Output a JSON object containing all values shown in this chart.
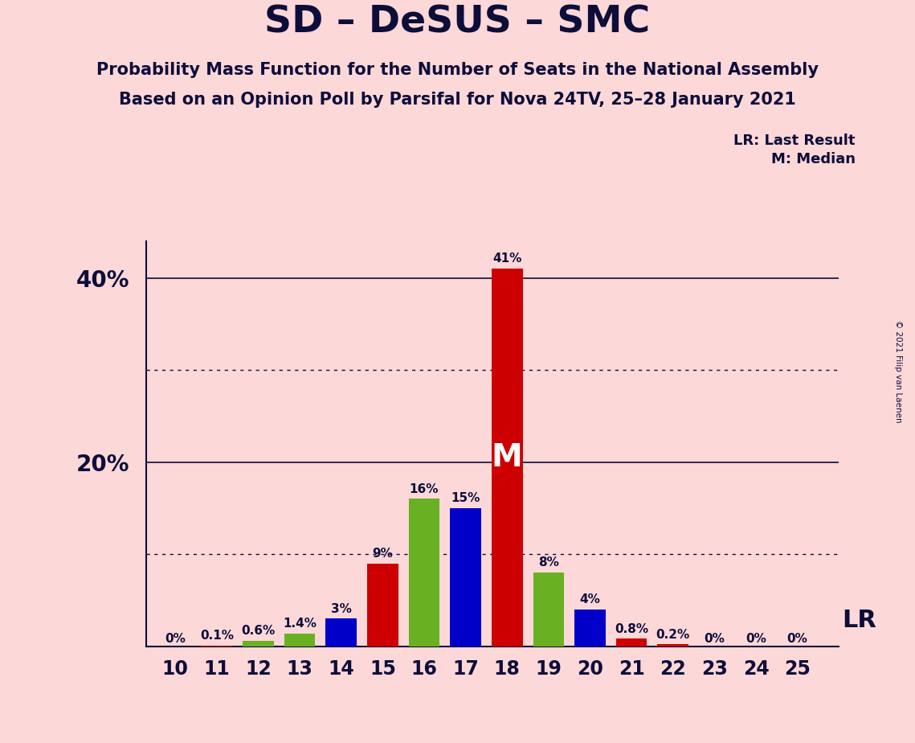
{
  "title": "SD – DeSUS – SMC",
  "subtitle1": "Probability Mass Function for the Number of Seats in the National Assembly",
  "subtitle2": "Based on an Opinion Poll by Parsifal for Nova 24TV, 25–28 January 2021",
  "copyright": "© 2021 Filip van Laenen",
  "background_color": "#fcd8d8",
  "seats": [
    10,
    11,
    12,
    13,
    14,
    15,
    16,
    17,
    18,
    19,
    20,
    21,
    22,
    23,
    24,
    25
  ],
  "values": [
    0.0,
    0.1,
    0.6,
    1.4,
    3.0,
    9.0,
    16.0,
    15.0,
    41.0,
    8.0,
    4.0,
    0.8,
    0.2,
    0.0,
    0.0,
    0.0
  ],
  "colors": [
    "#0000c8",
    "#cc0000",
    "#6ab023",
    "#6ab023",
    "#0000c8",
    "#cc0000",
    "#6ab023",
    "#0000c8",
    "#cc0000",
    "#6ab023",
    "#0000c8",
    "#cc0000",
    "#cc0000",
    "#0000c8",
    "#6ab023",
    "#0000c8"
  ],
  "bar_labels": [
    "0%",
    "0.1%",
    "0.6%",
    "1.4%",
    "3%",
    "9%",
    "16%",
    "15%",
    "41%",
    "8%",
    "4%",
    "0.8%",
    "0.2%",
    "0%",
    "0%",
    "0%"
  ],
  "median_seat": 18,
  "lr_seat": 21,
  "ylim": [
    0,
    44
  ],
  "ytick_positions": [
    20,
    40
  ],
  "ytick_labels": [
    "20%",
    "40%"
  ],
  "solid_gridlines": [
    20,
    40
  ],
  "dotted_gridlines": [
    10,
    30
  ],
  "title_color": "#0d0d3a",
  "bar_label_color": "#0d0d3a",
  "axis_color": "#0d0d3a",
  "legend_color": "#0d0d3a",
  "median_label_color": "#ffffff",
  "lr_label_color": "#0d0d3a"
}
